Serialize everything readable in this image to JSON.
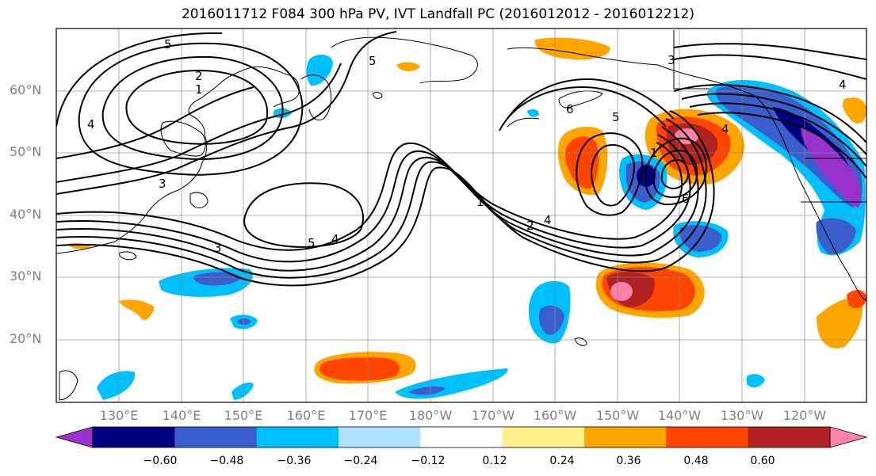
{
  "title": "2016011712 F084 300 hPa PV, IVT Landfall PC (2016012012 - 2016012212)",
  "lat_labels": [
    "60°N",
    "50°N",
    "40°N",
    "30°N",
    "20°N"
  ],
  "lon_labels": [
    "130°E",
    "140°E",
    "150°E",
    "160°E",
    "170°E",
    "180°W",
    "170°W",
    "160°W",
    "150°W",
    "140°W",
    "130°W",
    "120°W"
  ],
  "colorbar": {
    "ticks": [
      "−0.60",
      "−0.48",
      "−0.36",
      "−0.24",
      "−0.12",
      "0.12",
      "0.24",
      "0.36",
      "0.48",
      "0.60"
    ],
    "colors": [
      "#9932cc",
      "#000080",
      "#3a5fcd",
      "#00bfff",
      "#b0e2ff",
      "#ffffff",
      "#fff08a",
      "#ffa500",
      "#ff4500",
      "#b22222",
      "#ff82ab"
    ]
  },
  "pv_contour_labels": [
    "5",
    "2",
    "1",
    "4",
    "3",
    "5",
    "3",
    "4",
    "5",
    "4",
    "1",
    "2",
    "4",
    "3",
    "6",
    "5",
    "1",
    "6",
    "4"
  ]
}
